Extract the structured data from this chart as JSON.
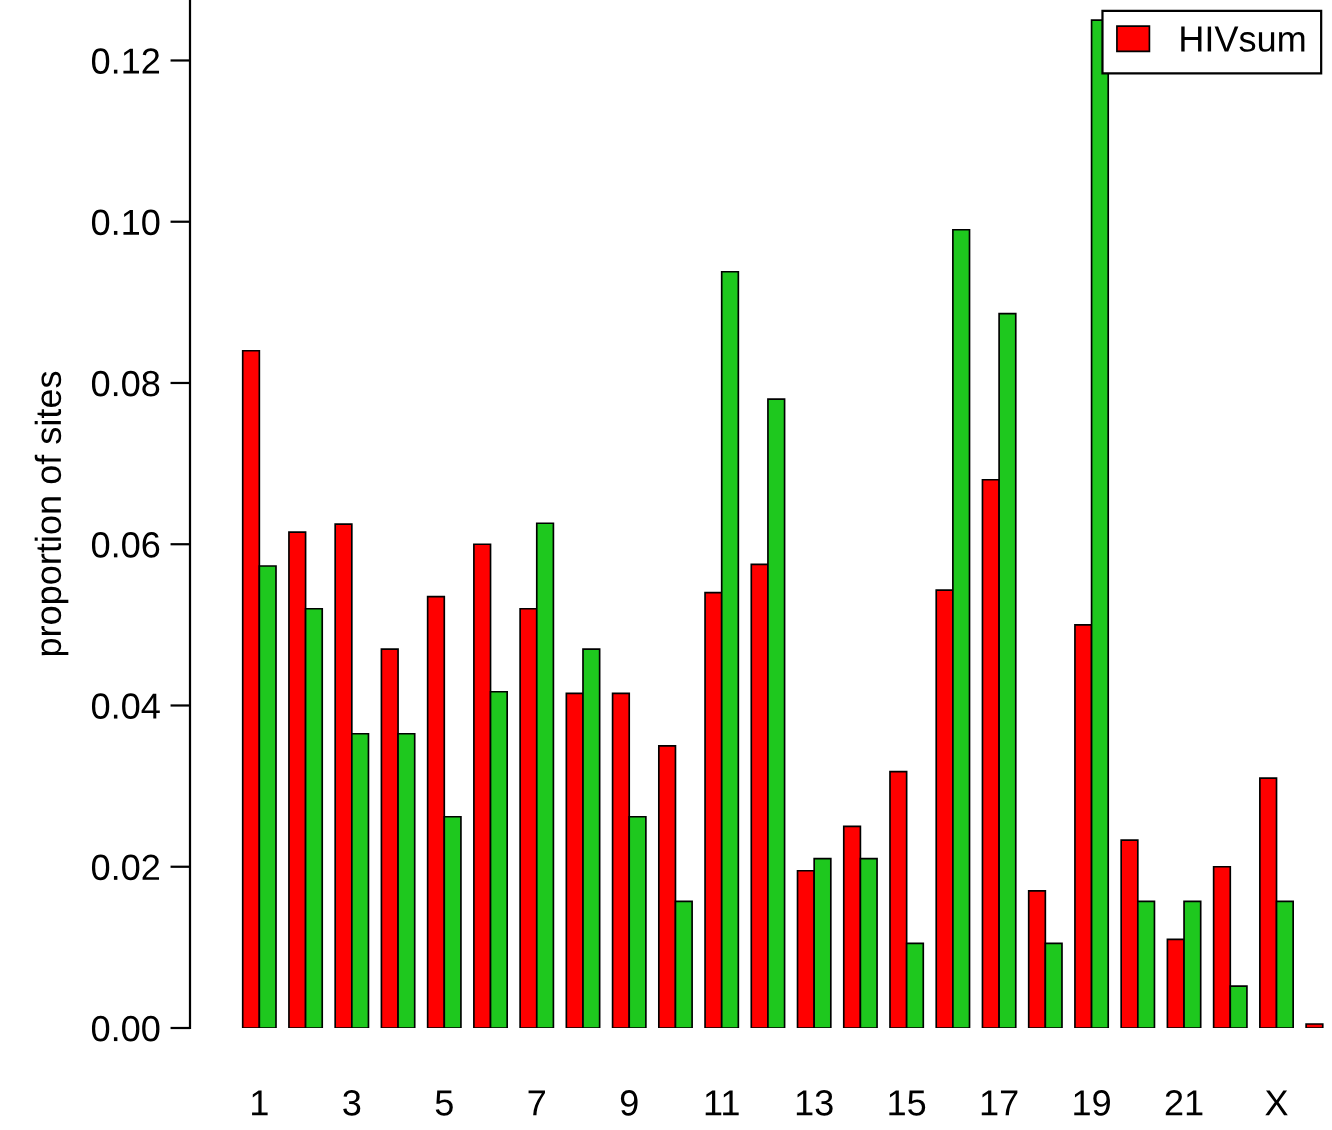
{
  "chart_data": {
    "type": "bar",
    "ylabel": "proportion of sites",
    "categories": [
      "1",
      null,
      "3",
      null,
      "5",
      null,
      "7",
      null,
      "9",
      null,
      "11",
      null,
      "13",
      null,
      "15",
      null,
      "17",
      null,
      "19",
      null,
      "21",
      null,
      "X",
      null
    ],
    "series": [
      {
        "name": "HIVsum",
        "color": "#ff0000",
        "values": [
          0.084,
          0.0615,
          0.0625,
          0.047,
          0.0535,
          0.06,
          0.052,
          0.0415,
          0.0415,
          0.035,
          0.054,
          0.0575,
          0.0195,
          0.025,
          0.0318,
          0.0543,
          0.068,
          0.017,
          0.05,
          0.0233,
          0.011,
          0.02,
          0.031,
          0.0005
        ]
      },
      {
        "color": "#1ec81e",
        "values": [
          0.0573,
          0.052,
          0.0365,
          0.0365,
          0.0262,
          0.0417,
          0.0626,
          0.047,
          0.0262,
          0.0157,
          0.0938,
          0.078,
          0.021,
          0.021,
          0.0105,
          0.099,
          0.0886,
          0.0105,
          0.125,
          0.0157,
          0.0157,
          0.0052,
          0.0157,
          null
        ]
      }
    ],
    "ylim": [
      0,
      0.1275
    ],
    "yticks": [
      {
        "value": 0,
        "label": "0.00"
      },
      {
        "value": 0.02,
        "label": "0.02"
      },
      {
        "value": 0.04,
        "label": "0.04"
      },
      {
        "value": 0.06,
        "label": "0.06"
      },
      {
        "value": 0.08,
        "label": "0.08"
      },
      {
        "value": 0.1,
        "label": "0.10"
      },
      {
        "value": 0.12,
        "label": "0.12"
      }
    ],
    "grid": false,
    "legend": "top right"
  }
}
